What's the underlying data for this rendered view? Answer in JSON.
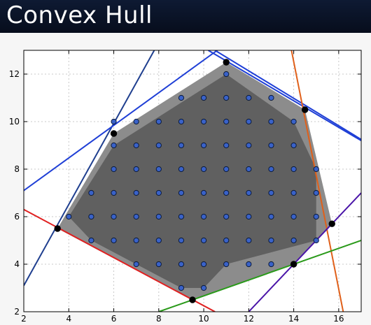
{
  "header": {
    "title": "Convex Hull"
  },
  "colors": {
    "hull_fill": "#8c8c8c",
    "inner_fill": "#606060",
    "points": "#3a62c8",
    "vertices": "#000000",
    "grid": "#c8c8c8"
  },
  "chart_data": {
    "type": "scatter",
    "title": "",
    "xlabel": "",
    "ylabel": "",
    "xlim": [
      2,
      17
    ],
    "ylim": [
      2,
      13
    ],
    "xticks": [
      2,
      4,
      6,
      8,
      10,
      12,
      14,
      16
    ],
    "yticks": [
      2,
      4,
      6,
      8,
      10,
      12
    ],
    "grid": true,
    "points": [
      [
        4,
        6
      ],
      [
        5,
        7
      ],
      [
        5,
        6
      ],
      [
        5,
        5
      ],
      [
        6,
        10
      ],
      [
        6,
        9
      ],
      [
        6,
        8
      ],
      [
        6,
        7
      ],
      [
        6,
        6
      ],
      [
        6,
        5
      ],
      [
        7,
        10
      ],
      [
        7,
        9
      ],
      [
        7,
        8
      ],
      [
        7,
        7
      ],
      [
        7,
        6
      ],
      [
        7,
        5
      ],
      [
        7,
        4
      ],
      [
        8,
        10
      ],
      [
        8,
        9
      ],
      [
        8,
        8
      ],
      [
        8,
        7
      ],
      [
        8,
        6
      ],
      [
        8,
        5
      ],
      [
        8,
        4
      ],
      [
        9,
        11
      ],
      [
        9,
        10
      ],
      [
        9,
        9
      ],
      [
        9,
        8
      ],
      [
        9,
        7
      ],
      [
        9,
        6
      ],
      [
        9,
        5
      ],
      [
        9,
        4
      ],
      [
        9,
        3
      ],
      [
        10,
        11
      ],
      [
        10,
        10
      ],
      [
        10,
        9
      ],
      [
        10,
        8
      ],
      [
        10,
        7
      ],
      [
        10,
        6
      ],
      [
        10,
        5
      ],
      [
        10,
        4
      ],
      [
        10,
        3
      ],
      [
        11,
        12
      ],
      [
        11,
        11
      ],
      [
        11,
        10
      ],
      [
        11,
        9
      ],
      [
        11,
        8
      ],
      [
        11,
        7
      ],
      [
        11,
        6
      ],
      [
        11,
        5
      ],
      [
        11,
        4
      ],
      [
        12,
        11
      ],
      [
        12,
        10
      ],
      [
        12,
        9
      ],
      [
        12,
        8
      ],
      [
        12,
        7
      ],
      [
        12,
        6
      ],
      [
        12,
        5
      ],
      [
        12,
        4
      ],
      [
        13,
        11
      ],
      [
        13,
        10
      ],
      [
        13,
        9
      ],
      [
        13,
        8
      ],
      [
        13,
        7
      ],
      [
        13,
        6
      ],
      [
        13,
        5
      ],
      [
        13,
        4
      ],
      [
        14,
        10
      ],
      [
        14,
        9
      ],
      [
        14,
        8
      ],
      [
        14,
        7
      ],
      [
        14,
        6
      ],
      [
        14,
        5
      ],
      [
        14,
        4
      ],
      [
        15,
        8
      ],
      [
        15,
        7
      ],
      [
        15,
        6
      ],
      [
        15,
        5
      ]
    ],
    "hull": [
      [
        4,
        6
      ],
      [
        6,
        9
      ],
      [
        11,
        12
      ],
      [
        14,
        10
      ],
      [
        15,
        8
      ],
      [
        15,
        5
      ],
      [
        11,
        4
      ],
      [
        10,
        3
      ],
      [
        9,
        3
      ],
      [
        5,
        5
      ]
    ],
    "outer_hull": [
      [
        3.5,
        5.5
      ],
      [
        6,
        9.5
      ],
      [
        11,
        12.5
      ],
      [
        14.5,
        10.5
      ],
      [
        15.7,
        5.7
      ],
      [
        14,
        4
      ],
      [
        9.5,
        2.5
      ]
    ],
    "vertices": [
      [
        3.5,
        5.5
      ],
      [
        6,
        9.5
      ],
      [
        11,
        12.5
      ],
      [
        14.5,
        10.5
      ],
      [
        15.7,
        5.7
      ],
      [
        14,
        4
      ],
      [
        9.5,
        2.5
      ]
    ],
    "lines": [
      {
        "color": "#1f3f8f",
        "from": [
          2,
          3.1
        ],
        "to": [
          7.8,
          13
        ]
      },
      {
        "color": "#1f3fd6",
        "from": [
          2,
          7.1
        ],
        "to": [
          10.6,
          13
        ]
      },
      {
        "color": "#1f3fd6",
        "from": [
          10.2,
          13
        ],
        "to": [
          17,
          9.2
        ]
      },
      {
        "color": "#1f3fd6",
        "from": [
          10.5,
          13
        ],
        "to": [
          17,
          9.25
        ]
      },
      {
        "color": "#e0601a",
        "from": [
          13.9,
          13
        ],
        "to": [
          16.2,
          2
        ]
      },
      {
        "color": "#e02020",
        "from": [
          2,
          6.3
        ],
        "to": [
          10.5,
          2
        ]
      },
      {
        "color": "#2a9a1a",
        "from": [
          8,
          2
        ],
        "to": [
          17,
          5
        ]
      },
      {
        "color": "#4a14a8",
        "from": [
          12,
          2
        ],
        "to": [
          17,
          7
        ]
      }
    ]
  }
}
